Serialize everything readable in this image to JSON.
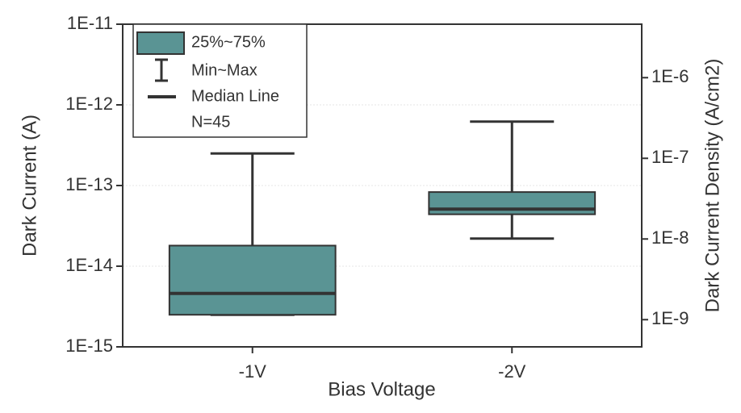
{
  "chart_data": {
    "type": "box",
    "x_label": "Bias Voltage",
    "y_label": "Dark Current (A)",
    "y2_label": "Dark Current Density (A/cm2)",
    "categories": [
      "-1V",
      "-2V"
    ],
    "boxes": [
      {
        "min": 2.5e-15,
        "q1": 2.5e-15,
        "median": 4.6e-15,
        "q3": 1.8e-14,
        "max": 2.5e-13
      },
      {
        "min": 2.2e-14,
        "q1": 4.4e-14,
        "median": 5.1e-14,
        "q3": 8.3e-14,
        "max": 6.2e-13
      }
    ],
    "color": "#5a9494",
    "log_y": true,
    "grid": true,
    "ylim": [
      1e-15,
      1e-11
    ],
    "yticks": [
      {
        "value": 1e-15,
        "label": "1E-15"
      },
      {
        "value": 1e-14,
        "label": "1E-14"
      },
      {
        "value": 1e-13,
        "label": "1E-13"
      },
      {
        "value": 1e-12,
        "label": "1E-12"
      },
      {
        "value": 1e-11,
        "label": "1E-11"
      }
    ],
    "y2lim": [
      4.6e-10,
      4.6e-06
    ],
    "y2ticks": [
      {
        "value": 1e-09,
        "label": "1E-9"
      },
      {
        "value": 1e-08,
        "label": "1E-8"
      },
      {
        "value": 1e-07,
        "label": "1E-7"
      },
      {
        "value": 1e-06,
        "label": "1E-6"
      }
    ],
    "legend": {
      "position": "upper left",
      "box": "25%~75%",
      "whisker": "Min~Max",
      "median": "Median Line",
      "note": "N=45"
    }
  }
}
